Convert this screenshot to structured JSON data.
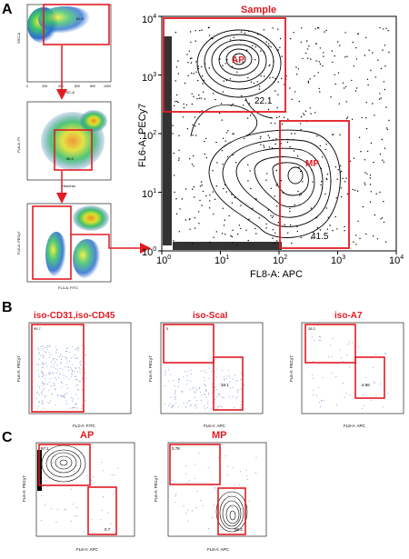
{
  "panel_labels": [
    "A",
    "B",
    "C"
  ],
  "panel_a": {
    "thumbs": [
      {
        "ylabel": "SSC-A",
        "xlabel": "FSC-A",
        "gate_value": "62.3",
        "x_ticks": [
          "0",
          "200",
          "400",
          "600",
          "800",
          "1000"
        ],
        "y_ticks": [
          "0",
          "200",
          "400",
          "600",
          "800",
          "1000"
        ]
      },
      {
        "ylabel": "FL8-A: PI",
        "xlabel": "Hoechst",
        "gate_value": "56.3"
      },
      {
        "ylabel": "FL6-A: PECy7",
        "xlabel": "FL3-A: FITC",
        "gate_value": ""
      }
    ],
    "main_plot": {
      "title": "Sample",
      "ylabel": "FL6-A: PECy7",
      "xlabel": "FL8-A: APC",
      "x_ticks": [
        {
          "base": "10",
          "exp": "0"
        },
        {
          "base": "10",
          "exp": "1"
        },
        {
          "base": "10",
          "exp": "2"
        },
        {
          "base": "10",
          "exp": "3"
        },
        {
          "base": "10",
          "exp": "4"
        }
      ],
      "y_ticks": [
        {
          "base": "10",
          "exp": "0"
        },
        {
          "base": "10",
          "exp": "1"
        },
        {
          "base": "10",
          "exp": "2"
        },
        {
          "base": "10",
          "exp": "3"
        },
        {
          "base": "10",
          "exp": "4"
        }
      ],
      "gate_ap_label": "AP",
      "gate_ap_value": "22.1",
      "gate_mp_label": "MP",
      "gate_mp_value": "41.5"
    }
  },
  "panel_b": {
    "plots": [
      {
        "title": "iso-CD31,iso-CD45",
        "ylabel": "FL6-A: PECy7",
        "xlabel": "FL3-A: FITC",
        "gate_value": "99.7"
      },
      {
        "title": "iso-ScaI",
        "ylabel": "FL6-A: PECy7",
        "xlabel": "FL8-A: APC",
        "gate_value_1": "0",
        "gate_value_2": "19.1"
      },
      {
        "title": "iso-A7",
        "ylabel": "FL6-A: PECy7",
        "xlabel": "FL8-A: APC",
        "gate_value_1": "26.2",
        "gate_value_2": "4.96"
      }
    ]
  },
  "panel_c": {
    "plots": [
      {
        "title": "AP",
        "ylabel": "FL6-A: PECy7",
        "xlabel": "FL8-A: APC",
        "gate_value_1": "97.1",
        "gate_value_2": "0.7"
      },
      {
        "title": "MP",
        "ylabel": "FL6-A: PECy7",
        "xlabel": "FL8-A: APC",
        "gate_value_1": "0.78",
        "gate_value_2": "95.4"
      }
    ]
  },
  "small_tick_labels": [
    "10^0",
    "10^1",
    "10^2",
    "10^3",
    "10^4"
  ],
  "colors": {
    "gate": "#e31b23",
    "arrow": "#e31b23",
    "contour": "#000000",
    "dots": "#3060c0"
  }
}
